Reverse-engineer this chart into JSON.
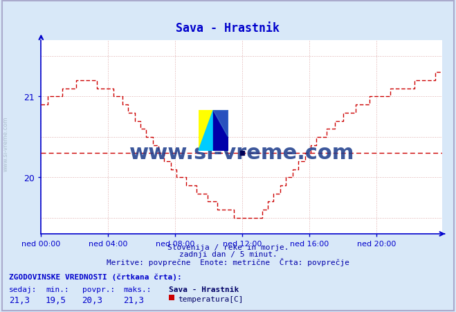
{
  "title": "Sava - Hrastnik",
  "title_color": "#0000cc",
  "bg_color": "#d8e8f8",
  "plot_bg_color": "#ffffff",
  "line_color": "#cc0000",
  "avg_line_color": "#cc0000",
  "avg_value": 20.3,
  "y_min": 19.3,
  "y_max": 21.7,
  "y_ticks": [
    20,
    21
  ],
  "x_labels": [
    "ned 00:00",
    "ned 04:00",
    "ned 08:00",
    "ned 12:00",
    "ned 16:00",
    "ned 20:00"
  ],
  "x_tick_positions": [
    0,
    48,
    96,
    144,
    192,
    240
  ],
  "total_points": 288,
  "grid_color": "#ddaaaa",
  "axis_color": "#0000cc",
  "footer_line1": "Slovenija / reke in morje.",
  "footer_line2": "zadnji dan / 5 minut.",
  "footer_line3": "Meritve: povprečne  Enote: metrične  Črta: povprečje",
  "footer_color": "#0000aa",
  "stats_label": "ZGODOVINSKE VREDNOSTI (črtkana črta):",
  "stats_color": "#0000cc",
  "col_headers": [
    "sedaj:",
    "min.:",
    "povpr.:",
    "maks.:"
  ],
  "col_values": [
    "21,3",
    "19,5",
    "20,3",
    "21,3"
  ],
  "legend_label": "Sava - Hrastnik",
  "legend_unit": "temperatura[C]",
  "watermark": "www.si-vreme.com",
  "watermark_color": "#1a3a8a",
  "sidewatermark": "www.si-vreme.com",
  "sidewatermark_color": "#aabbcc"
}
